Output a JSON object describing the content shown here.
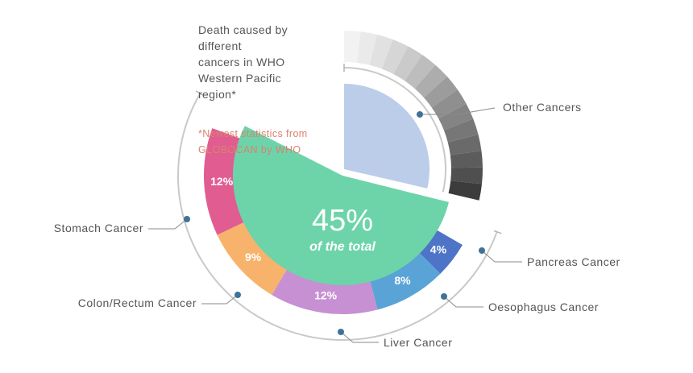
{
  "title_lines": [
    "Death caused by",
    "different",
    "cancers in WHO",
    "Western Pacific",
    "region*"
  ],
  "note_lines": [
    "*Newest statistics from",
    "GLOBOCAN by WHO"
  ],
  "center": {
    "value": "45%",
    "caption": "of the total"
  },
  "chart_data": {
    "type": "pie",
    "categories": [
      "Pancreas Cancer",
      "Oesophagus Cancer",
      "Liver Cancer",
      "Colon/Rectum Cancer",
      "Stomach Cancer",
      "Other Cancers"
    ],
    "values": [
      4,
      8,
      12,
      9,
      12,
      55
    ],
    "labels": [
      "4%",
      "8%",
      "12%",
      "9%",
      "12%",
      ""
    ],
    "colors": [
      "#4d74c7",
      "#5aa3d6",
      "#c690d2",
      "#f7b36b",
      "#e05c91",
      "#bccdea"
    ],
    "highlight_total": "45%",
    "highlight_color": "#6dd4aa",
    "other_breakdown_colors": [
      "#3c3c3c",
      "#4f4f4f",
      "#5c5c5c",
      "#6a6a6a",
      "#777777",
      "#848484",
      "#8f8f8f",
      "#9c9c9c",
      "#adadad",
      "#bdbdbd",
      "#cacaca",
      "#d6d6d6",
      "#e1e1e1",
      "#eaeaea",
      "#f2f2f2"
    ]
  }
}
